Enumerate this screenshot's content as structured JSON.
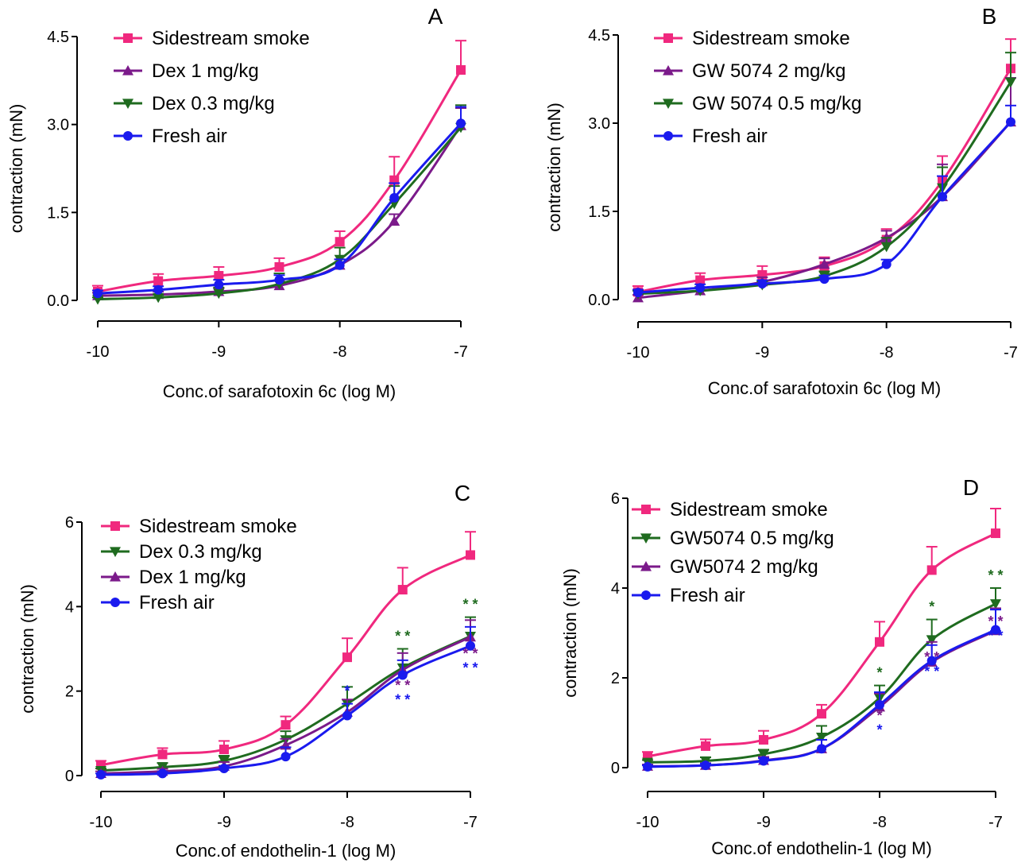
{
  "colors": {
    "Sidestream smoke": "#f0287e",
    "Dex 1 mg/kg": "#7b1a8a",
    "Dex 0.3 mg/kg": "#1f6b1f",
    "Fresh air": "#1a1aee",
    "GW 5074 2 mg/kg": "#7b1a8a",
    "GW 5074 0.5 mg/kg": "#1f6b1f",
    "GW5074 0.5 mg/kg": "#1f6b1f",
    "GW5074 2 mg/kg": "#7b1a8a",
    "Dex  1 mg/kg": "#7b1a8a"
  },
  "chart_data": [
    {
      "panel": "A",
      "type": "line",
      "xlabel": "Conc.of sarafotoxin 6c (log M)",
      "ylabel": "contraction (mN)",
      "xlim": [
        -10,
        -7
      ],
      "ylim": [
        0,
        4.5
      ],
      "xticks": [
        "-10",
        "-9",
        "-8",
        "-7"
      ],
      "yticks": [
        "0.0",
        "1.5",
        "3.0",
        "4.5"
      ],
      "legend_position": "top-left",
      "grid": false,
      "x": [
        -10,
        -9.5,
        -9,
        -8.5,
        -8,
        -7.55,
        -7
      ],
      "series": [
        {
          "name": "Sidestream smoke",
          "marker": "square",
          "values": [
            0.15,
            0.33,
            0.42,
            0.57,
            1.0,
            2.05,
            3.93
          ],
          "errors": [
            0.1,
            0.12,
            0.15,
            0.15,
            0.18,
            0.4,
            0.5
          ]
        },
        {
          "name": "Dex 1 mg/kg",
          "marker": "triangle-up",
          "values": [
            0.08,
            0.1,
            0.15,
            0.25,
            0.6,
            1.35,
            2.98
          ],
          "errors": [
            0.05,
            0.05,
            0.06,
            0.08,
            0.1,
            0.12,
            0.3
          ]
        },
        {
          "name": "Dex 0.3 mg/kg",
          "marker": "triangle-down",
          "values": [
            0.02,
            0.05,
            0.12,
            0.28,
            0.7,
            1.65,
            2.95
          ],
          "errors": [
            0.03,
            0.04,
            0.1,
            0.18,
            0.2,
            0.3,
            0.38
          ]
        },
        {
          "name": "Fresh air",
          "marker": "circle",
          "values": [
            0.12,
            0.18,
            0.27,
            0.35,
            0.6,
            1.75,
            3.02
          ],
          "errors": [
            0.05,
            0.06,
            0.08,
            0.08,
            0.1,
            0.25,
            0.28
          ]
        }
      ]
    },
    {
      "panel": "B",
      "type": "line",
      "xlabel": "Conc.of sarafotoxin 6c (log M)",
      "ylabel": "contraction (mN)",
      "xlim": [
        -10,
        -7
      ],
      "ylim": [
        0,
        4.5
      ],
      "xticks": [
        "-10",
        "-9",
        "-8",
        "-7"
      ],
      "yticks": [
        "0.0",
        "1.5",
        "3.0",
        "4.5"
      ],
      "legend_position": "top-left",
      "grid": false,
      "x": [
        -10,
        -9.5,
        -9,
        -8.5,
        -8,
        -7.55,
        -7
      ],
      "series": [
        {
          "name": "Sidestream smoke",
          "marker": "square",
          "values": [
            0.13,
            0.33,
            0.42,
            0.57,
            1.02,
            2.02,
            3.93
          ],
          "errors": [
            0.1,
            0.12,
            0.15,
            0.15,
            0.18,
            0.42,
            0.5
          ]
        },
        {
          "name": "GW 5074 2 mg/kg",
          "marker": "triangle-up",
          "values": [
            0.03,
            0.15,
            0.3,
            0.6,
            1.05,
            1.75,
            3.02
          ],
          "errors": [
            0.05,
            0.06,
            0.08,
            0.1,
            0.12,
            0.55,
            0.75
          ]
        },
        {
          "name": "GW 5074 0.5 mg/kg",
          "marker": "triangle-down",
          "values": [
            0.1,
            0.15,
            0.25,
            0.4,
            0.9,
            1.9,
            3.7
          ],
          "errors": [
            0.05,
            0.06,
            0.06,
            0.08,
            0.15,
            0.35,
            0.5
          ]
        },
        {
          "name": "Fresh air",
          "marker": "circle",
          "values": [
            0.12,
            0.2,
            0.27,
            0.35,
            0.6,
            1.75,
            3.02
          ],
          "errors": [
            0.05,
            0.06,
            0.06,
            0.06,
            0.08,
            0.35,
            0.28
          ]
        }
      ]
    },
    {
      "panel": "C",
      "type": "line",
      "xlabel": "Conc.of endothelin-1 (log M)",
      "ylabel": "contraction (mN)",
      "xlim": [
        -10,
        -7
      ],
      "ylim": [
        0,
        6
      ],
      "xticks": [
        "-10",
        "-9",
        "-8",
        "-7"
      ],
      "yticks": [
        "0",
        "2",
        "4",
        "6"
      ],
      "legend_position": "top-left",
      "grid": false,
      "x": [
        -10,
        -9.5,
        -9,
        -8.5,
        -8,
        -7.55,
        -7
      ],
      "series": [
        {
          "name": "Sidestream smoke",
          "marker": "square",
          "values": [
            0.25,
            0.5,
            0.62,
            1.2,
            2.8,
            4.4,
            5.22
          ],
          "errors": [
            0.1,
            0.15,
            0.2,
            0.2,
            0.45,
            0.52,
            0.55
          ]
        },
        {
          "name": "Dex 0.3 mg/kg",
          "marker": "triangle-down",
          "values": [
            0.12,
            0.2,
            0.35,
            0.85,
            1.7,
            2.55,
            3.3
          ],
          "errors": [
            0.05,
            0.1,
            0.12,
            0.2,
            0.4,
            0.45,
            0.45
          ]
        },
        {
          "name": "Dex  1 mg/kg",
          "marker": "triangle-up",
          "values": [
            0.05,
            0.1,
            0.22,
            0.72,
            1.5,
            2.5,
            3.28
          ],
          "errors": [
            0.05,
            0.06,
            0.1,
            0.15,
            0.3,
            0.4,
            0.4
          ]
        },
        {
          "name": "Fresh air",
          "marker": "circle",
          "values": [
            0.02,
            0.05,
            0.17,
            0.45,
            1.42,
            2.38,
            3.07
          ],
          "errors": [
            0.03,
            0.04,
            0.06,
            0.22,
            0.28,
            0.35,
            0.45
          ]
        }
      ],
      "annotations": [
        {
          "x": -8,
          "text": "*",
          "series": "Fresh air"
        },
        {
          "x": -7.55,
          "text": "* *",
          "series": "Dex 0.3 mg/kg"
        },
        {
          "x": -7.55,
          "text": "* *",
          "series": "Dex  1 mg/kg"
        },
        {
          "x": -7.55,
          "text": "* *",
          "series": "Fresh air"
        },
        {
          "x": -7,
          "text": "* *",
          "series": "Dex 0.3 mg/kg"
        },
        {
          "x": -7,
          "text": "* *",
          "series": "Dex  1 mg/kg"
        },
        {
          "x": -7,
          "text": "* *",
          "series": "Fresh air"
        }
      ]
    },
    {
      "panel": "D",
      "type": "line",
      "xlabel": "Conc.of endothelin-1 (log M)",
      "ylabel": "contraction (mN)",
      "xlim": [
        -10,
        -7
      ],
      "ylim": [
        0,
        6
      ],
      "xticks": [
        "-10",
        "-9",
        "-8",
        "-7"
      ],
      "yticks": [
        "0",
        "2",
        "4",
        "6"
      ],
      "legend_position": "top-left",
      "grid": false,
      "x": [
        -10,
        -9.5,
        -9,
        -8.5,
        -8,
        -7.55,
        -7
      ],
      "series": [
        {
          "name": "Sidestream smoke",
          "marker": "square",
          "values": [
            0.25,
            0.48,
            0.62,
            1.2,
            2.8,
            4.4,
            5.22
          ],
          "errors": [
            0.1,
            0.15,
            0.2,
            0.2,
            0.45,
            0.52,
            0.55
          ]
        },
        {
          "name": "GW5074 0.5 mg/kg",
          "marker": "triangle-down",
          "values": [
            0.12,
            0.15,
            0.3,
            0.68,
            1.55,
            2.85,
            3.65
          ],
          "errors": [
            0.05,
            0.08,
            0.1,
            0.25,
            0.28,
            0.45,
            0.35
          ]
        },
        {
          "name": "GW5074 2 mg/kg",
          "marker": "triangle-up",
          "values": [
            0.03,
            0.05,
            0.16,
            0.42,
            1.35,
            2.35,
            3.05
          ],
          "errors": [
            0.04,
            0.05,
            0.08,
            0.2,
            0.3,
            0.45,
            0.5
          ]
        },
        {
          "name": "Fresh air",
          "marker": "circle",
          "values": [
            0.02,
            0.05,
            0.15,
            0.42,
            1.4,
            2.38,
            3.07
          ],
          "errors": [
            0.03,
            0.04,
            0.06,
            0.2,
            0.28,
            0.35,
            0.45
          ]
        }
      ],
      "annotations": [
        {
          "x": -8,
          "text": "*",
          "series": "GW5074 0.5 mg/kg"
        },
        {
          "x": -8,
          "text": "*",
          "series": "GW5074 2 mg/kg"
        },
        {
          "x": -8,
          "text": "*",
          "series": "Fresh air"
        },
        {
          "x": -7.55,
          "text": "*",
          "series": "GW5074 0.5 mg/kg"
        },
        {
          "x": -7.55,
          "text": "* *",
          "series": "GW5074 2 mg/kg"
        },
        {
          "x": -7.55,
          "text": "* *",
          "series": "Fresh air"
        },
        {
          "x": -7,
          "text": "* *",
          "series": "GW5074 0.5 mg/kg"
        },
        {
          "x": -7,
          "text": "* *",
          "series": "GW5074 2 mg/kg"
        },
        {
          "x": -7,
          "text": "* *",
          "series": "Fresh air"
        }
      ]
    }
  ]
}
